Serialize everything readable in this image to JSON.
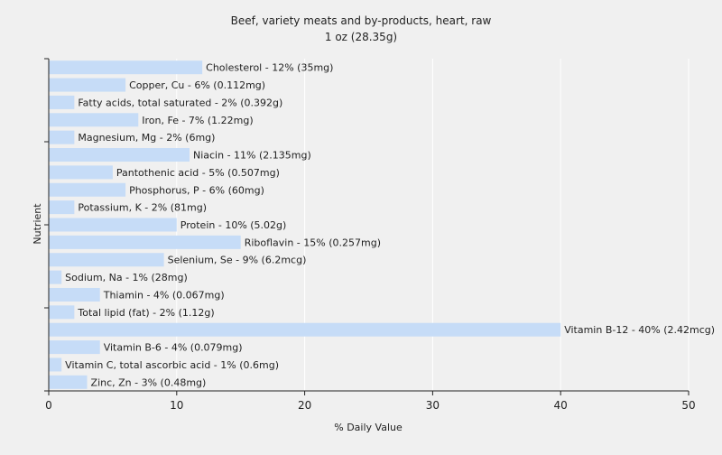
{
  "chart_data": {
    "type": "bar",
    "orientation": "horizontal",
    "title": "Beef, variety meats and by-products, heart, raw",
    "subtitle": "1 oz (28.35g)",
    "xlabel": "% Daily Value",
    "ylabel": "Nutrient",
    "xlim": [
      0,
      50
    ],
    "xticks": [
      0,
      10,
      20,
      30,
      40,
      50
    ],
    "grid": true,
    "bar_color": "#c6dcf7",
    "grid_color": "#ffffff",
    "background": "#f0f0f0",
    "categories": [
      "Cholesterol",
      "Copper, Cu",
      "Fatty acids, total saturated",
      "Iron, Fe",
      "Magnesium, Mg",
      "Niacin",
      "Pantothenic acid",
      "Phosphorus, P",
      "Potassium, K",
      "Protein",
      "Riboflavin",
      "Selenium, Se",
      "Sodium, Na",
      "Thiamin",
      "Total lipid (fat)",
      "Vitamin B-12",
      "Vitamin B-6",
      "Vitamin C, total ascorbic acid",
      "Zinc, Zn"
    ],
    "values": [
      12,
      6,
      2,
      7,
      2,
      11,
      5,
      6,
      2,
      10,
      15,
      9,
      1,
      4,
      2,
      40,
      4,
      1,
      3
    ],
    "labels": [
      "Cholesterol - 12% (35mg)",
      "Copper, Cu - 6% (0.112mg)",
      "Fatty acids, total saturated - 2% (0.392g)",
      "Iron, Fe - 7% (1.22mg)",
      "Magnesium, Mg - 2% (6mg)",
      "Niacin - 11% (2.135mg)",
      "Pantothenic acid - 5% (0.507mg)",
      "Phosphorus, P - 6% (60mg)",
      "Potassium, K - 2% (81mg)",
      "Protein - 10% (5.02g)",
      "Riboflavin - 15% (0.257mg)",
      "Selenium, Se - 9% (6.2mcg)",
      "Sodium, Na - 1% (28mg)",
      "Thiamin - 4% (0.067mg)",
      "Total lipid (fat) - 2% (1.12g)",
      "Vitamin B-12 - 40% (2.42mcg)",
      "Vitamin B-6 - 4% (0.079mg)",
      "Vitamin C, total ascorbic acid - 1% (0.6mg)",
      "Zinc, Zn - 3% (0.48mg)"
    ]
  }
}
